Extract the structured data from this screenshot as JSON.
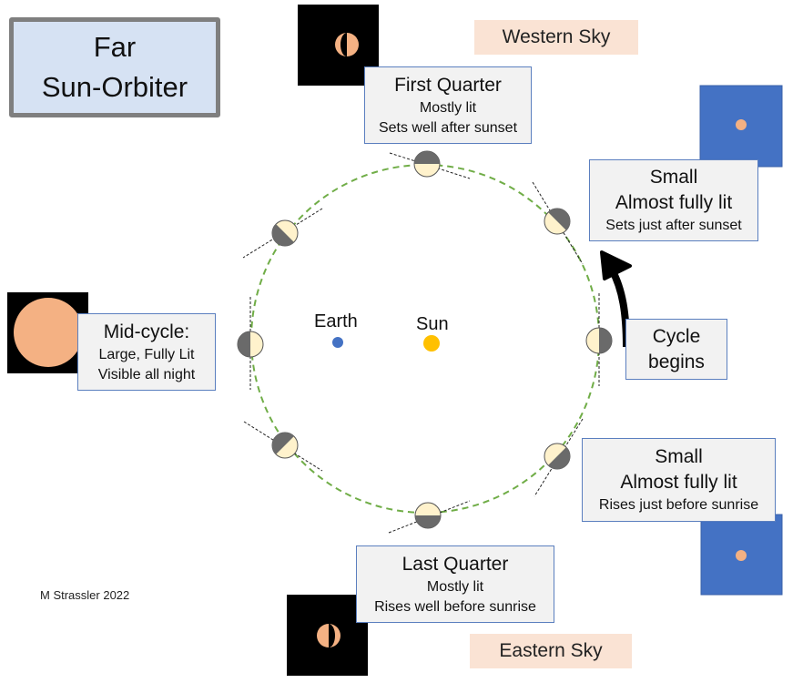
{
  "title": {
    "line1": "Far",
    "line2": "Sun-Orbiter"
  },
  "sky": {
    "western": "Western Sky",
    "eastern": "Eastern Sky"
  },
  "bodies": {
    "earth": "Earth",
    "sun": "Sun"
  },
  "colors": {
    "earth": "#4472c4",
    "sun": "#ffc000",
    "orbit": "#70ad47",
    "lit": "#fff2cc",
    "dark": "#6a6a6a",
    "disk": "#f4b183",
    "sky_night": "#000000",
    "sky_twilight": "#4472c4"
  },
  "labels": {
    "first_quarter": {
      "title": "First Quarter",
      "line2": "Mostly lit",
      "line3": "Sets well after sunset"
    },
    "small_west": {
      "title": "Small",
      "line2": "Almost fully lit",
      "line3": "Sets just after sunset"
    },
    "mid_cycle": {
      "title": "Mid-cycle:",
      "line2": "Large, Fully Lit",
      "line3": "Visible all night"
    },
    "cycle_begins": {
      "line1": "Cycle",
      "line2": "begins"
    },
    "small_east": {
      "title": "Small",
      "line2": "Almost fully lit",
      "line3": "Rises just before sunrise"
    },
    "last_quarter": {
      "title": "Last Quarter",
      "line2": "Mostly lit",
      "line3": "Rises well before sunrise"
    }
  },
  "credit": "M Strassler 2022"
}
